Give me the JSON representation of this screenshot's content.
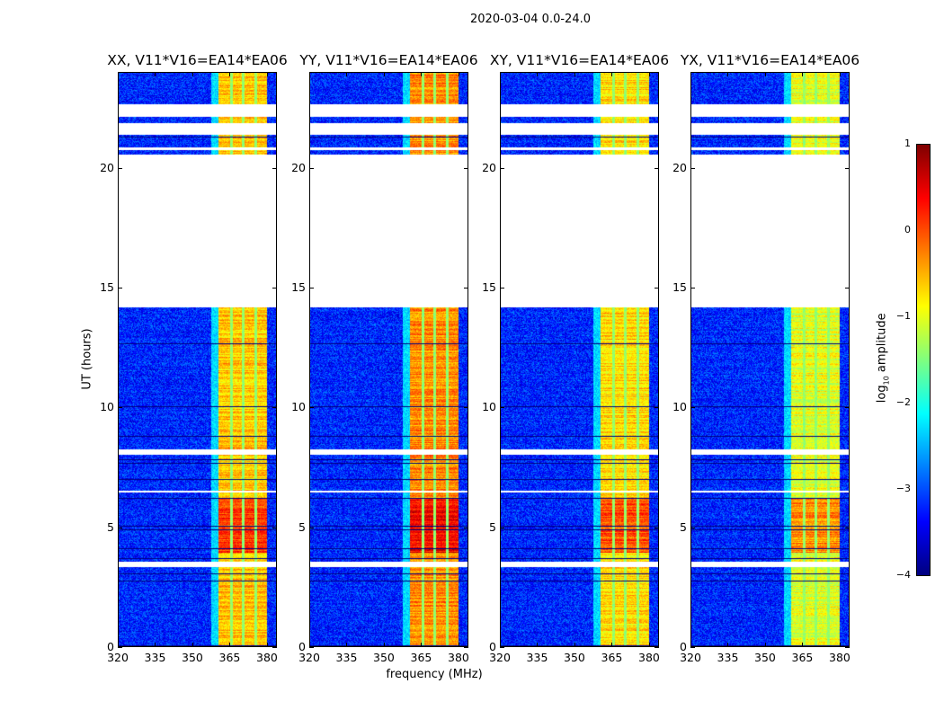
{
  "chart_data": {
    "type": "heatmap",
    "suptitle": "2020-03-04 0.0-24.0",
    "xlabel": "frequency (MHz)",
    "ylabel": "UT (hours)",
    "xlim": [
      320,
      384
    ],
    "ylim": [
      0,
      24
    ],
    "xticks": [
      "320",
      "335",
      "350",
      "365",
      "380"
    ],
    "xtick_values": [
      320,
      335,
      350,
      365,
      380
    ],
    "yticks": [
      "0",
      "5",
      "10",
      "15",
      "20"
    ],
    "ytick_values": [
      0,
      5,
      10,
      15,
      20
    ],
    "panels": [
      {
        "title": "XX, V11*V16=EA14*EA06",
        "band_level": -0.6,
        "offset": 0
      },
      {
        "title": "YY, V11*V16=EA14*EA06",
        "band_level": -0.4,
        "offset": 0.1
      },
      {
        "title": "XY, V11*V16=EA14*EA06",
        "band_level": -0.6,
        "offset": -0.1
      },
      {
        "title": "YX, V11*V16=EA14*EA06",
        "band_level": -0.8,
        "offset": -0.2
      }
    ],
    "band_mhz": [
      360,
      379.5
    ],
    "band_stripes_mhz": [
      365.3,
      370,
      375
    ],
    "strong_band_hours": [
      4,
      6.3
    ],
    "background_level": -3.2,
    "missing_hours": [
      [
        14.25,
        20.6
      ],
      [
        20.8,
        20.9
      ],
      [
        21.45,
        21.9
      ],
      [
        22.2,
        22.7
      ],
      [
        8.1,
        8.3
      ],
      [
        6.5,
        6.6
      ],
      [
        3.4,
        3.6
      ]
    ],
    "colorbar": {
      "label": "log10 amplitude",
      "label_main": "log",
      "label_sub": "10",
      "label_rest": " amplitude",
      "range": [
        -4,
        1
      ],
      "ticks": [
        "1",
        "0",
        "−1",
        "−2",
        "−3",
        "−4"
      ],
      "tick_values": [
        1,
        0,
        -1,
        -2,
        -3,
        -4
      ],
      "colormap": "jet"
    }
  }
}
